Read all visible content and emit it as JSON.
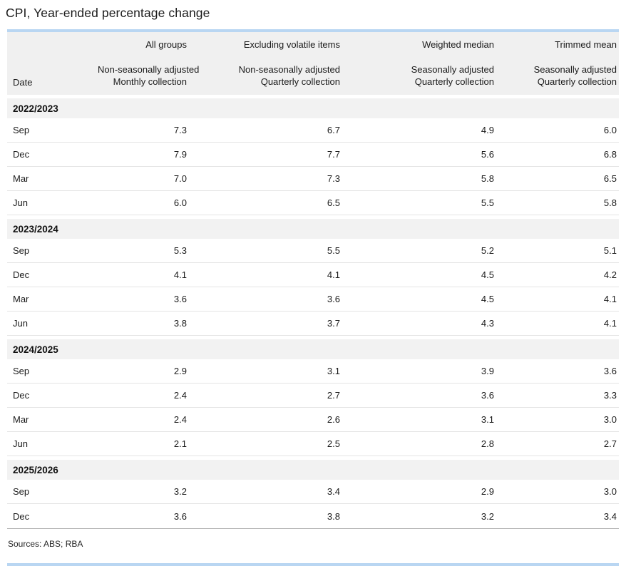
{
  "chart_data": {
    "type": "table",
    "title": "CPI, Year-ended percentage change",
    "date_header": "Date",
    "columns": [
      {
        "group": "All groups",
        "adjustment": "Non-seasonally adjusted",
        "collection": "Monthly collection"
      },
      {
        "group": "Excluding volatile items",
        "adjustment": "Non-seasonally adjusted",
        "collection": "Quarterly collection"
      },
      {
        "group": "Weighted median",
        "adjustment": "Seasonally adjusted",
        "collection": "Quarterly collection"
      },
      {
        "group": "Trimmed mean",
        "adjustment": "Seasonally adjusted",
        "collection": "Quarterly collection"
      }
    ],
    "year_groups": [
      {
        "year": "2022/2023",
        "rows": [
          {
            "date": "Sep",
            "values": [
              "7.3",
              "6.7",
              "4.9",
              "6.0"
            ]
          },
          {
            "date": "Dec",
            "values": [
              "7.9",
              "7.7",
              "5.6",
              "6.8"
            ]
          },
          {
            "date": "Mar",
            "values": [
              "7.0",
              "7.3",
              "5.8",
              "6.5"
            ]
          },
          {
            "date": "Jun",
            "values": [
              "6.0",
              "6.5",
              "5.5",
              "5.8"
            ]
          }
        ]
      },
      {
        "year": "2023/2024",
        "rows": [
          {
            "date": "Sep",
            "values": [
              "5.3",
              "5.5",
              "5.2",
              "5.1"
            ]
          },
          {
            "date": "Dec",
            "values": [
              "4.1",
              "4.1",
              "4.5",
              "4.2"
            ]
          },
          {
            "date": "Mar",
            "values": [
              "3.6",
              "3.6",
              "4.5",
              "4.1"
            ]
          },
          {
            "date": "Jun",
            "values": [
              "3.8",
              "3.7",
              "4.3",
              "4.1"
            ]
          }
        ]
      },
      {
        "year": "2024/2025",
        "rows": [
          {
            "date": "Sep",
            "values": [
              "2.9",
              "3.1",
              "3.9",
              "3.6"
            ]
          },
          {
            "date": "Dec",
            "values": [
              "2.4",
              "2.7",
              "3.6",
              "3.3"
            ]
          },
          {
            "date": "Mar",
            "values": [
              "2.4",
              "2.6",
              "3.1",
              "3.0"
            ]
          },
          {
            "date": "Jun",
            "values": [
              "2.1",
              "2.5",
              "2.8",
              "2.7"
            ]
          }
        ]
      },
      {
        "year": "2025/2026",
        "rows": [
          {
            "date": "Sep",
            "values": [
              "3.2",
              "3.4",
              "2.9",
              "3.0"
            ]
          },
          {
            "date": "Dec",
            "values": [
              "3.6",
              "3.8",
              "3.2",
              "3.4"
            ]
          }
        ]
      }
    ]
  },
  "footer": {
    "sources": "Sources: ABS; RBA"
  },
  "colors": {
    "accent_bar": "#b9d6f2",
    "header_bg": "#f0f0f0",
    "group_band_bg": "#f2f2f2",
    "row_border": "#e4e4e4",
    "table_end_rule": "#b3b3b3",
    "text": "#1a1a1a"
  }
}
